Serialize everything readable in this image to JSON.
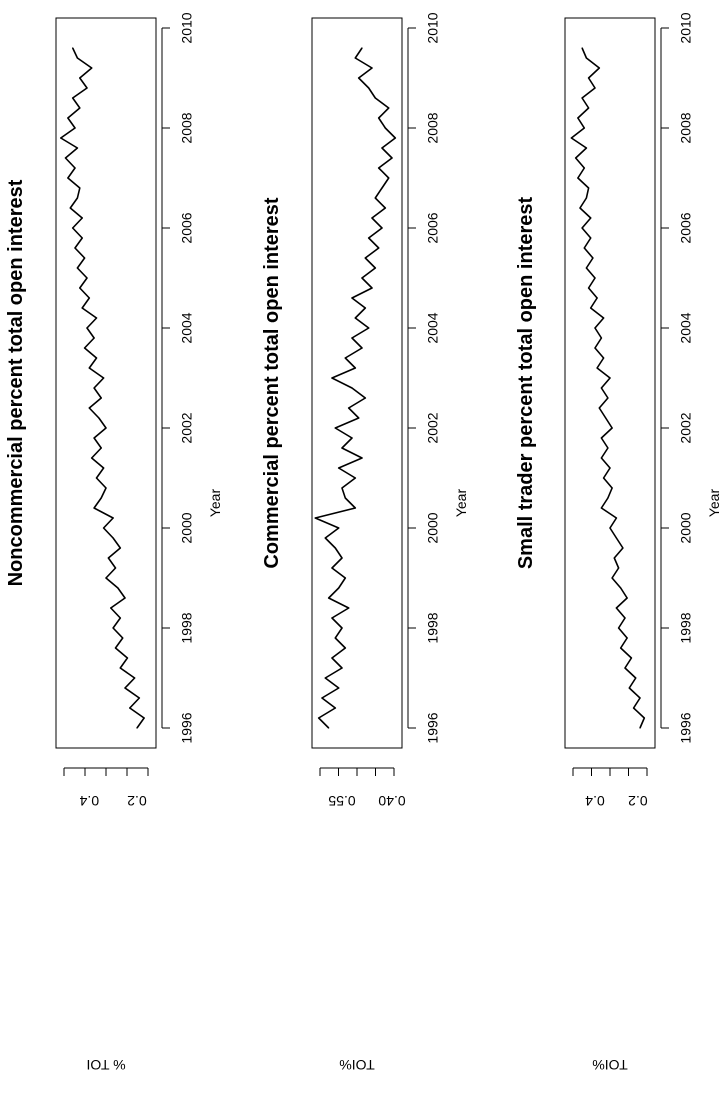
{
  "xaxis": {
    "label": "Year",
    "ticks": [
      "1996",
      "1998",
      "2000",
      "2002",
      "2004",
      "2006",
      "2008",
      "2010"
    ]
  },
  "chart_data": [
    {
      "type": "line",
      "title": "Noncommercial percent total open interest",
      "xlabel": "Year",
      "ylabel": "% TOI",
      "yticks": [
        "0.2",
        "0.4"
      ],
      "xlim": [
        1995.6,
        2010.2
      ],
      "ylim": [
        0.12,
        0.54
      ],
      "grid": false,
      "series": [
        {
          "x": [
            1996.0,
            1996.2,
            1996.4,
            1996.6,
            1996.8,
            1997.0,
            1997.2,
            1997.4,
            1997.6,
            1997.8,
            1998.0,
            1998.2,
            1998.4,
            1998.6,
            1998.8,
            1999.0,
            1999.2,
            1999.4,
            1999.6,
            1999.8,
            2000.0,
            2000.2,
            2000.4,
            2000.6,
            2000.8,
            2001.0,
            2001.2,
            2001.4,
            2001.6,
            2001.8,
            2002.0,
            2002.2,
            2002.4,
            2002.6,
            2002.8,
            2003.0,
            2003.2,
            2003.4,
            2003.6,
            2003.8,
            2004.0,
            2004.2,
            2004.4,
            2004.6,
            2004.8,
            2005.0,
            2005.2,
            2005.4,
            2005.6,
            2005.8,
            2006.0,
            2006.2,
            2006.4,
            2006.6,
            2006.8,
            2007.0,
            2007.2,
            2007.4,
            2007.6,
            2007.8,
            2008.0,
            2008.2,
            2008.4,
            2008.6,
            2008.8,
            2009.0,
            2009.2,
            2009.4,
            2009.6
          ],
          "y": [
            0.2,
            0.17,
            0.23,
            0.19,
            0.25,
            0.21,
            0.27,
            0.24,
            0.29,
            0.26,
            0.3,
            0.27,
            0.31,
            0.25,
            0.28,
            0.33,
            0.29,
            0.32,
            0.27,
            0.3,
            0.34,
            0.3,
            0.38,
            0.35,
            0.33,
            0.37,
            0.34,
            0.39,
            0.35,
            0.38,
            0.33,
            0.36,
            0.4,
            0.35,
            0.38,
            0.34,
            0.4,
            0.37,
            0.42,
            0.38,
            0.41,
            0.37,
            0.43,
            0.4,
            0.44,
            0.41,
            0.45,
            0.42,
            0.46,
            0.43,
            0.47,
            0.43,
            0.48,
            0.45,
            0.44,
            0.49,
            0.46,
            0.5,
            0.45,
            0.52,
            0.46,
            0.49,
            0.44,
            0.47,
            0.41,
            0.44,
            0.39,
            0.45,
            0.47
          ]
        }
      ]
    },
    {
      "type": "line",
      "title": "Commercial percent total open interest",
      "xlabel": "Year",
      "ylabel": "TOI%",
      "yticks": [
        "0.55",
        "0.40"
      ],
      "xlim": [
        1995.6,
        2010.2
      ],
      "ylim": [
        0.37,
        0.64
      ],
      "grid": false,
      "series": [
        {
          "x": [
            1996.0,
            1996.2,
            1996.4,
            1996.6,
            1996.8,
            1997.0,
            1997.2,
            1997.4,
            1997.6,
            1997.8,
            1998.0,
            1998.2,
            1998.4,
            1998.6,
            1998.8,
            1999.0,
            1999.2,
            1999.4,
            1999.6,
            1999.8,
            2000.0,
            2000.2,
            2000.4,
            2000.6,
            2000.8,
            2001.0,
            2001.2,
            2001.4,
            2001.6,
            2001.8,
            2002.0,
            2002.2,
            2002.4,
            2002.6,
            2002.8,
            2003.0,
            2003.2,
            2003.4,
            2003.6,
            2003.8,
            2004.0,
            2004.2,
            2004.4,
            2004.6,
            2004.8,
            2005.0,
            2005.2,
            2005.4,
            2005.6,
            2005.8,
            2006.0,
            2006.2,
            2006.4,
            2006.6,
            2006.8,
            2007.0,
            2007.2,
            2007.4,
            2007.6,
            2007.8,
            2008.0,
            2008.2,
            2008.4,
            2008.6,
            2008.8,
            2009.0,
            2009.2,
            2009.4,
            2009.6
          ],
          "y": [
            0.59,
            0.62,
            0.57,
            0.61,
            0.56,
            0.6,
            0.55,
            0.58,
            0.54,
            0.57,
            0.55,
            0.58,
            0.53,
            0.59,
            0.56,
            0.54,
            0.58,
            0.55,
            0.57,
            0.6,
            0.56,
            0.63,
            0.51,
            0.54,
            0.55,
            0.51,
            0.56,
            0.49,
            0.55,
            0.52,
            0.57,
            0.5,
            0.53,
            0.48,
            0.52,
            0.58,
            0.51,
            0.54,
            0.49,
            0.52,
            0.47,
            0.51,
            0.48,
            0.52,
            0.46,
            0.49,
            0.45,
            0.48,
            0.44,
            0.47,
            0.43,
            0.46,
            0.42,
            0.45,
            0.43,
            0.41,
            0.44,
            0.4,
            0.43,
            0.39,
            0.42,
            0.44,
            0.41,
            0.45,
            0.47,
            0.5,
            0.46,
            0.51,
            0.49
          ]
        }
      ]
    },
    {
      "type": "line",
      "title": "Small trader percent total open interest",
      "xlabel": "Year",
      "ylabel": "TOI%",
      "yticks": [
        "0.2",
        "0.4"
      ],
      "xlim": [
        1995.6,
        2010.2
      ],
      "ylim": [
        0.12,
        0.54
      ],
      "grid": false,
      "series": [
        {
          "x": [
            1996.0,
            1996.2,
            1996.4,
            1996.6,
            1996.8,
            1997.0,
            1997.2,
            1997.4,
            1997.6,
            1997.8,
            1998.0,
            1998.2,
            1998.4,
            1998.6,
            1998.8,
            1999.0,
            1999.2,
            1999.4,
            1999.6,
            1999.8,
            2000.0,
            2000.2,
            2000.4,
            2000.6,
            2000.8,
            2001.0,
            2001.2,
            2001.4,
            2001.6,
            2001.8,
            2002.0,
            2002.2,
            2002.4,
            2002.6,
            2002.8,
            2003.0,
            2003.2,
            2003.4,
            2003.6,
            2003.8,
            2004.0,
            2004.2,
            2004.4,
            2004.6,
            2004.8,
            2005.0,
            2005.2,
            2005.4,
            2005.6,
            2005.8,
            2006.0,
            2006.2,
            2006.4,
            2006.6,
            2006.8,
            2007.0,
            2007.2,
            2007.4,
            2007.6,
            2007.8,
            2008.0,
            2008.2,
            2008.4,
            2008.6,
            2008.8,
            2009.0,
            2009.2,
            2009.4,
            2009.6
          ],
          "y": [
            0.19,
            0.17,
            0.22,
            0.19,
            0.24,
            0.21,
            0.26,
            0.23,
            0.28,
            0.25,
            0.29,
            0.26,
            0.3,
            0.25,
            0.28,
            0.32,
            0.29,
            0.31,
            0.27,
            0.3,
            0.33,
            0.3,
            0.37,
            0.34,
            0.32,
            0.36,
            0.33,
            0.37,
            0.34,
            0.37,
            0.32,
            0.35,
            0.38,
            0.34,
            0.37,
            0.33,
            0.39,
            0.36,
            0.4,
            0.37,
            0.4,
            0.36,
            0.42,
            0.39,
            0.43,
            0.4,
            0.44,
            0.41,
            0.45,
            0.42,
            0.46,
            0.42,
            0.47,
            0.44,
            0.43,
            0.48,
            0.45,
            0.49,
            0.44,
            0.51,
            0.45,
            0.48,
            0.43,
            0.46,
            0.4,
            0.43,
            0.38,
            0.44,
            0.46
          ]
        }
      ]
    }
  ]
}
